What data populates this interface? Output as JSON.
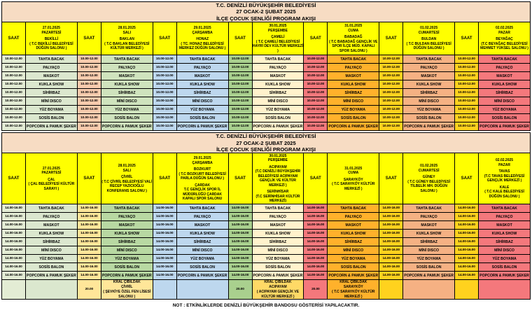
{
  "title_lines": [
    "T.C. DENİZLİ BÜYÜKŞEHİR BELEDİYESİ",
    "27 OCAK-2 ŞUBAT 2025",
    "İLÇE ÇOCUK ŞENLİĞİ PROGRAM AKIŞI"
  ],
  "saat_label": "SAAT",
  "note": "NOT : ETKİNLİKLERDE DENİZLİ BÜYÜKŞEHİR BANDOSU GÖSTERİSİ YAPILACAKTIR.",
  "activities": [
    "TAHTA BACAK",
    "PALYAÇO",
    "MASKOT",
    "KUKLA SHOW",
    "SİHİRBAZ",
    "MİNİ DISCO",
    "YÜZ BOYAMA",
    "SOSİS BALON",
    "POPCORN & PAMUK ŞEKER"
  ],
  "colors": {
    "title_band": "#f7dcc3",
    "header_yellow": "#ffff00"
  },
  "sections": [
    {
      "name": "morning",
      "time": "10.00-12.00",
      "saat_colors": [
        "#e3ecd4",
        "#f8cbad",
        "#bdd7ee",
        "#a9d08e",
        "#f4787c",
        "#ffd21e",
        "#ffd21e"
      ],
      "days": [
        {
          "color": "#dbe7ce",
          "header_lines": [
            "27.01.2025",
            "PAZARTESİ",
            "",
            "BEKİLLİ",
            "( T.C BEKİLLİ BELEDİYESİ DÜĞÜN SALONU )"
          ]
        },
        {
          "color": "#cfe3bd",
          "header_lines": [
            "28.01.2025",
            "SALI",
            "",
            "BAKLAN",
            "( T.C BAKLAN BELEDİYESİ KÜLTÜR MERKEZİ )"
          ]
        },
        {
          "color": "#bdd7ee",
          "header_lines": [
            "29.01.2025",
            "ÇARŞAMBA",
            "",
            "HONAZ",
            "( TC. HONAZ BELEDİYESİ MERKEZ DÜĞÜN SALONU )"
          ]
        },
        {
          "color": "#fff2cc",
          "header_lines": [
            "30.01.2025",
            "PERŞEMBE",
            "",
            "ÇAMELİ",
            "( T.C ÇAMELİ BELEDİYESİ HAYRİ DEV KÜLTÜR MERKEZİ )"
          ]
        },
        {
          "color": "#ffb12b",
          "header_lines": [
            "31.01.2025",
            "CUMA",
            "",
            "BABADAĞ",
            "( T.C BABADAĞ GENÇLİK VE SPOR İLÇE MÜD. KAPALI SPOR SALONU )"
          ]
        },
        {
          "color": "#f5b183",
          "header_lines": [
            "01.02.2025",
            "CUMARTESİ",
            "",
            "BULDAN",
            "( T.C BULDAN BELEDİYESİ DÜĞÜN SALONU )"
          ]
        },
        {
          "color": "#f4787c",
          "header_lines": [
            "02.02.2025",
            "PAZAR",
            "",
            "BEYAĞAÇ",
            "(T.C BEYAĞAÇ BELEDİYESİ MEHMET YÜKSEL SALONU )"
          ]
        }
      ]
    },
    {
      "name": "afternoon",
      "time": "14.00-16.00",
      "saat_colors": [
        "#e3ecd4",
        "#ffe699",
        "#bdd7ee",
        "#a9d08e",
        "#f4787c",
        "#ffd21e",
        "#ffd21e"
      ],
      "days": [
        {
          "color": "#dbe7ce",
          "header_lines": [
            "27.01.2025",
            "PAZARTESİ",
            "",
            "ÇAL",
            "( ÇAL BELEDİYESİ KÜLTÜR SARAYI )"
          ]
        },
        {
          "color": "#b8d8a2",
          "header_lines": [
            "28.01.2025",
            "SALI",
            "",
            "ÇİVRİL",
            "( T.C ÇİVRİL BELEDİYESİ VALİ RECEP YAZICIOĞLU KONFERANS SALONU )"
          ]
        },
        {
          "color": "#bdd7ee",
          "header_lines": [
            "29.01.2025",
            "ÇARŞAMBA",
            "",
            "BOZKURT",
            "( T.C BOZKURT BELEDİYESİ PARLA DÜĞÜN SALONU )",
            "",
            "ÇARDAK",
            "T.C GENÇLİK SPOR İL MÜDÜRLÜĞÜ ÇARDAK KAPALI SPOR SALONU"
          ]
        },
        {
          "color": "#fff2cc",
          "header_lines": [
            "30.01.2025",
            "PERŞEMBE",
            "",
            "ACIPAYAM",
            "(T.C DENİZLİ BÜYÜKŞEHİR BELEDİYESİ ACIPAYAM GENÇLİK VE KÜLTÜR MERKEZİ )",
            "",
            "SERİNHİSAR",
            "(T.C SERİNHİSAR KÜLTÜR MERKEZİ)"
          ]
        },
        {
          "color": "#ffb12b",
          "header_lines": [
            "31.01.2025",
            "CUMA",
            "",
            "SARAYKÖY",
            "( T.C SARAYKÖY KÜLTÜR MERKEZİ )"
          ]
        },
        {
          "color": "#f5b183",
          "header_lines": [
            "01.02.2025",
            "CUMARTESİ",
            "",
            "GÜNEY",
            "( T.C GÜNEY BELEDİYESİ TİLBELİK MH. DÜĞÜN SALONU )"
          ]
        },
        {
          "color": "#f4787c",
          "header_lines": [
            "02.02.2025",
            "PAZAR",
            "",
            "TAVAS",
            "(T.C TAVAS BELEDİYESİ GENÇLİK MERKEZİ )",
            "",
            "KALE",
            "( T.C KALE BELEDİYESİ DÜĞÜN SALONU )"
          ]
        }
      ],
      "extra": {
        "times": {
          "1": "20.00",
          "3": "20.00",
          "4": "20.00"
        },
        "cells": {
          "1": {
            "color": "#ffe699",
            "lines": [
              "KRAL ÇIBILDAK",
              "ÇİVRİL",
              "( ŞEVKİYE ÖZEL FEN LİSESİ SALONU )"
            ]
          },
          "3": {
            "color": "#ffd966",
            "lines": [
              "KRAL ÇIBILDAK",
              "ACIPAYAM",
              "( ACIPAYAM GENÇLİK VE KÜLTÜR MERKEZİ )"
            ]
          },
          "4": {
            "color": "#ffb12b",
            "lines": [
              "KRAL ÇIBILDAK",
              "SARAYKÖY",
              "( T.C SARAYKÖY KÜLTÜR MERKEZİ )"
            ]
          }
        }
      }
    }
  ]
}
